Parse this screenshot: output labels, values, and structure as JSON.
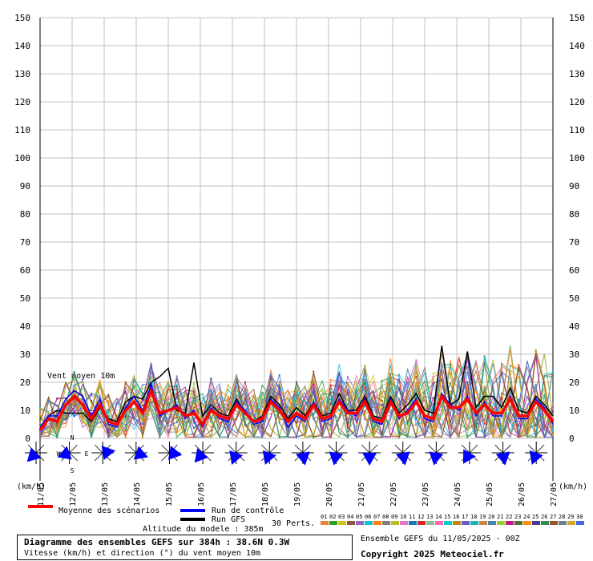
{
  "chart_data": {
    "type": "line",
    "title": "Diagramme des ensembles GEFS sur 384h : 38.6N 0.3W",
    "subtitle": "Vitesse (km/h) et direction (°) du vent moyen 10m",
    "ylabel": "(km/h)",
    "ylim": [
      0,
      150
    ],
    "yticks": [
      0,
      10,
      20,
      30,
      40,
      50,
      60,
      70,
      80,
      90,
      100,
      110,
      120,
      130,
      140,
      150
    ],
    "xticks": [
      "11/05",
      "12/05",
      "13/05",
      "14/05",
      "15/05",
      "16/05",
      "17/05",
      "18/05",
      "19/05",
      "20/05",
      "21/05",
      "22/05",
      "23/05",
      "24/05",
      "25/05",
      "26/05",
      "27/05"
    ],
    "series_label": "Vent moyen 10m",
    "grid": true,
    "mean_series": {
      "name": "Moyenne des scénarios",
      "color": "#ff0000",
      "values": [
        3,
        7,
        6,
        12,
        15,
        12,
        7,
        12,
        6,
        5,
        10,
        13,
        9,
        17,
        9,
        10,
        11,
        8,
        9,
        5,
        10,
        8,
        7,
        12,
        9,
        6,
        7,
        13,
        10,
        6,
        9,
        7,
        12,
        7,
        8,
        13,
        9,
        9,
        13,
        7,
        6,
        13,
        8,
        9,
        13,
        8,
        7,
        15,
        11,
        11,
        14,
        9,
        12,
        9,
        9,
        14,
        8,
        8,
        13,
        10,
        6
      ]
    },
    "control_series": {
      "name": "Run de contrôle",
      "color": "#0000ff",
      "values": [
        4,
        8,
        8,
        14,
        17,
        15,
        8,
        14,
        5,
        4,
        11,
        15,
        10,
        19,
        8,
        10,
        12,
        7,
        10,
        4,
        11,
        7,
        6,
        13,
        10,
        5,
        6,
        14,
        11,
        4,
        8,
        6,
        13,
        6,
        7,
        14,
        10,
        8,
        14,
        6,
        5,
        14,
        7,
        10,
        14,
        7,
        6,
        16,
        12,
        10,
        15,
        8,
        13,
        8,
        8,
        15,
        7,
        7,
        14,
        11,
        5
      ]
    },
    "gfs_series": {
      "name": "Run GFS",
      "color": "#000000",
      "values": [
        3,
        8,
        10,
        9,
        9,
        9,
        6,
        11,
        7,
        6,
        13,
        15,
        14,
        20,
        22,
        25,
        10,
        9,
        27,
        8,
        12,
        9,
        8,
        14,
        9,
        6,
        8,
        15,
        12,
        7,
        11,
        8,
        13,
        8,
        9,
        16,
        10,
        10,
        15,
        8,
        7,
        15,
        9,
        12,
        16,
        10,
        9,
        33,
        12,
        14,
        31,
        11,
        15,
        15,
        11,
        18,
        10,
        9,
        15,
        12,
        8
      ]
    },
    "perturbations": {
      "label": "30 Perts.",
      "count": 30,
      "ids": [
        "01",
        "02",
        "03",
        "04",
        "05",
        "06",
        "07",
        "08",
        "09",
        "10",
        "11",
        "12",
        "13",
        "14",
        "15",
        "16",
        "17",
        "18",
        "19",
        "20",
        "21",
        "22",
        "23",
        "24",
        "25",
        "26",
        "27",
        "28",
        "29",
        "30"
      ],
      "colors": [
        "#e8843a",
        "#2ca02c",
        "#d4c41a",
        "#8c564b",
        "#9467bd",
        "#17becf",
        "#ff7f0e",
        "#7f7f7f",
        "#bcbd22",
        "#e377c2",
        "#1f77b4",
        "#d62728",
        "#8fbc8f",
        "#ff69b4",
        "#00ced1",
        "#b8860b",
        "#6a5acd",
        "#20b2aa",
        "#cd853f",
        "#4682b4",
        "#9acd32",
        "#c71585",
        "#556b2f",
        "#ff8c00",
        "#483d8b",
        "#2e8b57",
        "#a0522d",
        "#708090",
        "#daa520",
        "#4169e1"
      ]
    },
    "wind_directions_deg": [
      225,
      270,
      250,
      90,
      80,
      45,
      110,
      140,
      100,
      210,
      220,
      200,
      200,
      190,
      200,
      180,
      170,
      200,
      190,
      160,
      180,
      220,
      170,
      210,
      190,
      160,
      210,
      180,
      170,
      200,
      200,
      180
    ],
    "wind_compass": {
      "n": "N",
      "s": "S",
      "w": "W",
      "e": "E"
    }
  },
  "info": {
    "altitude_label": "Altitude du modele : 385m",
    "run_label": "Ensemble GEFS du 11/05/2025 - 00Z",
    "copyright": "Copyright 2025 Meteociel.fr"
  }
}
